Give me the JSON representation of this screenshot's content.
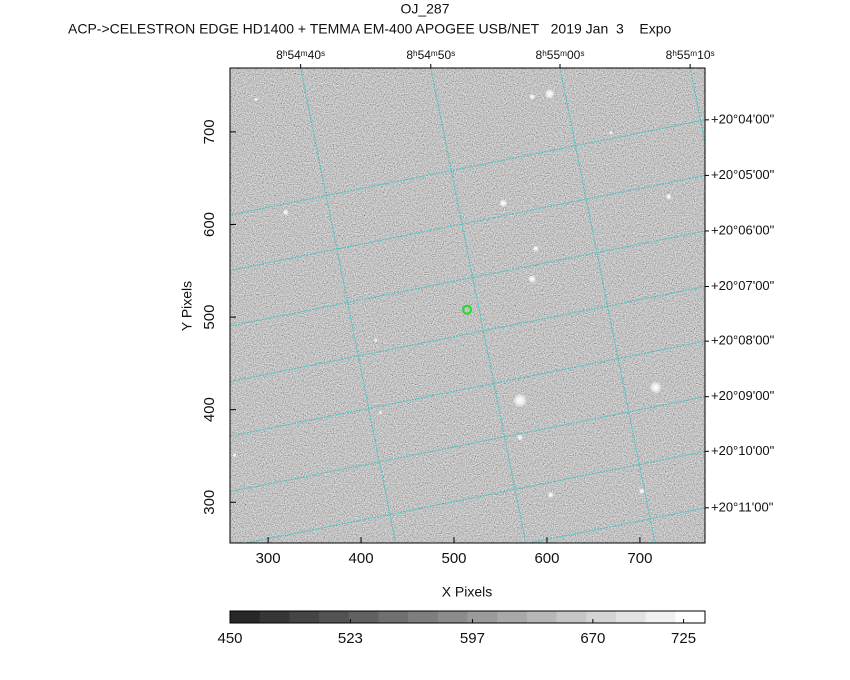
{
  "chart_data": {
    "type": "image",
    "title": "OJ_287",
    "subtitle": "ACP->CELESTRON EDGE HD1400 + TEMMA EM-400 APOGEE USB/NET   2019 Jan  3    Expo",
    "xlabel": "X Pixels",
    "ylabel": "Y Pixels",
    "xlim": [
      259,
      770
    ],
    "ylim": [
      256,
      769
    ],
    "xticks": [
      300,
      400,
      500,
      600,
      700
    ],
    "yticks": [
      300,
      400,
      500,
      600,
      700
    ],
    "ra_ticks": [
      {
        "value": 335,
        "label": "8ʰ54ᵐ40ˢ"
      },
      {
        "value": 475,
        "label": "8ʰ54ᵐ50ˢ"
      },
      {
        "value": 614,
        "label": "8ʰ55ᵐ00ˢ"
      },
      {
        "value": 754,
        "label": "8ʰ55ᵐ10ˢ"
      }
    ],
    "dec_ticks": [
      {
        "value": 713,
        "label": "+20°04'00\""
      },
      {
        "value": 653,
        "label": "+20°05'00\""
      },
      {
        "value": 593,
        "label": "+20°06'00\""
      },
      {
        "value": 533,
        "label": "+20°07'00\""
      },
      {
        "value": 474,
        "label": "+20°08'00\""
      },
      {
        "value": 414,
        "label": "+20°09'00\""
      },
      {
        "value": 355,
        "label": "+20°10'00\""
      },
      {
        "value": 294,
        "label": "+20°11'00\""
      }
    ],
    "grid_color": "#3fc4c4",
    "stars": {
      "x": [
        603,
        584,
        553,
        319,
        588,
        584,
        731,
        669,
        421,
        571,
        604,
        702,
        264,
        571,
        717,
        416,
        287
      ],
      "y": [
        741,
        738,
        623,
        613,
        574,
        541,
        630,
        699,
        397,
        370,
        308,
        312,
        351,
        410,
        424,
        475,
        735
      ],
      "size": [
        5,
        3,
        4,
        3,
        3,
        4,
        3,
        2,
        2,
        3,
        3,
        3,
        2,
        7,
        6,
        2,
        2
      ]
    },
    "target": {
      "x": 514,
      "y": 508,
      "color": "#22dd22"
    },
    "colorbar": {
      "lim": [
        450,
        738
      ],
      "ticks": [
        450,
        523,
        597,
        670,
        725
      ]
    }
  }
}
